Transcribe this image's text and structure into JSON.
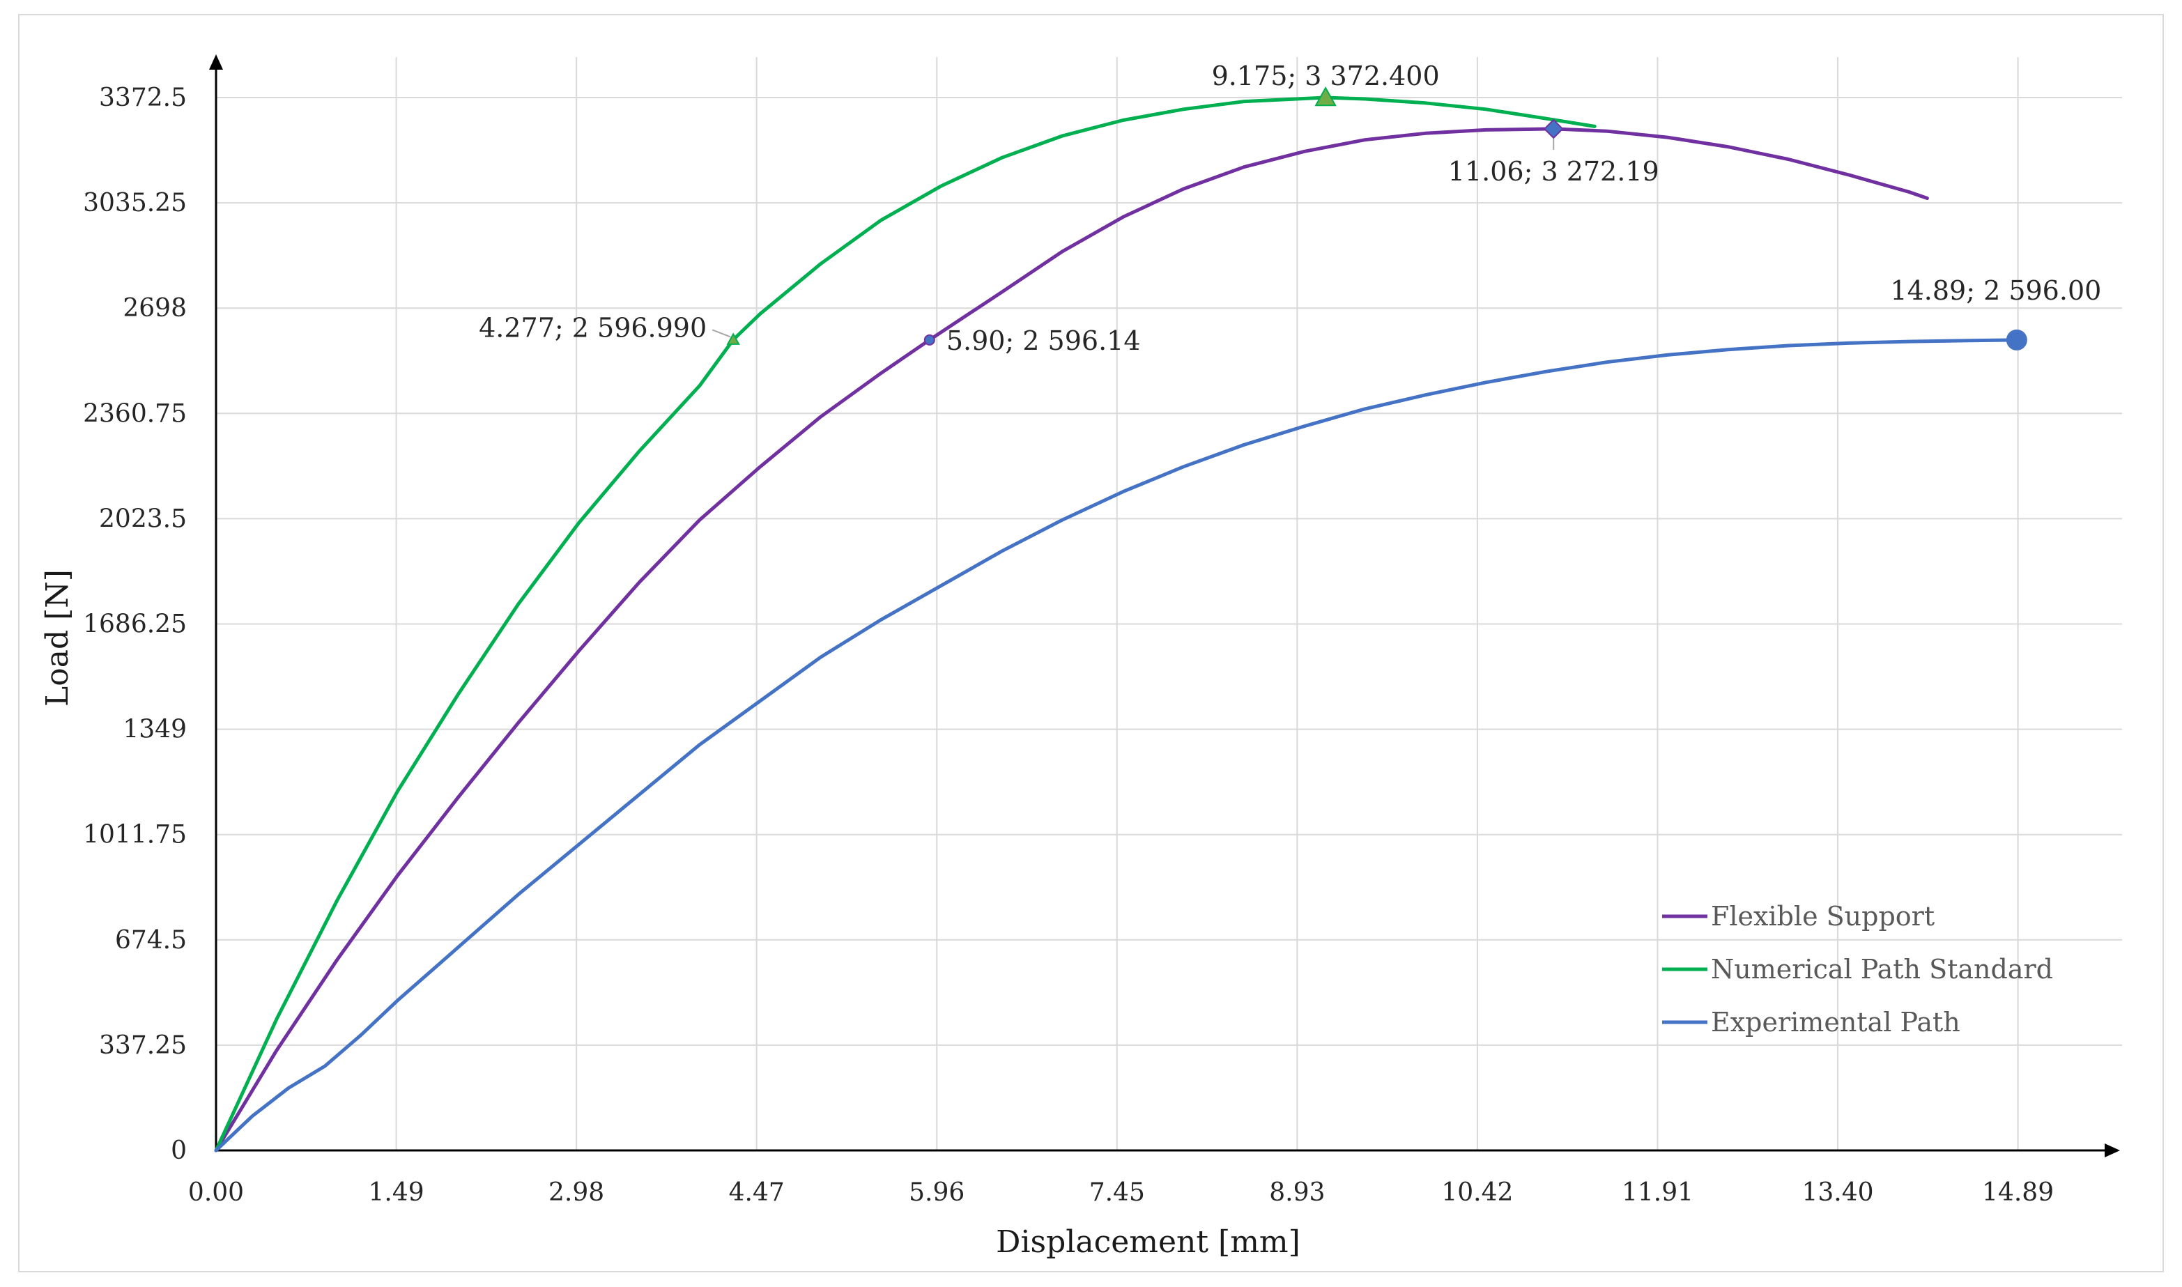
{
  "chart_data": {
    "type": "line",
    "xlabel": "Displacement  [mm]",
    "ylabel": "Load [N]",
    "xlim": [
      0,
      15.3
    ],
    "ylim": [
      0,
      3372.5
    ],
    "x_ticks": [
      "0.00",
      "1.49",
      "2.98",
      "4.47",
      "5.96",
      "7.45",
      "8.93",
      "10.42",
      "11.91",
      "13.40",
      "14.89"
    ],
    "y_ticks": [
      "0",
      "337.25",
      "674.5",
      "1011.75",
      "1349",
      "1686.25",
      "2023.5",
      "2360.75",
      "2698",
      "3035.25",
      "3372.5"
    ],
    "grid": true,
    "legend_position": "bottom-right",
    "series": [
      {
        "name": "Flexible Support",
        "color": "#7030a0",
        "x": [
          0,
          0.5,
          1.0,
          1.5,
          2.0,
          2.5,
          3.0,
          3.5,
          4.0,
          4.5,
          5.0,
          5.5,
          5.9,
          6.5,
          7.0,
          7.5,
          8.0,
          8.5,
          9.0,
          9.5,
          10.0,
          10.5,
          11.06,
          11.5,
          12.0,
          12.5,
          13.0,
          13.5,
          14.0,
          14.15
        ],
        "y": [
          0,
          320,
          610,
          880,
          1130,
          1370,
          1600,
          1820,
          2020,
          2190,
          2350,
          2490,
          2596.14,
          2750,
          2880,
          2990,
          3080,
          3150,
          3200,
          3237,
          3258,
          3269,
          3272.19,
          3265,
          3245,
          3215,
          3175,
          3125,
          3070,
          3050
        ]
      },
      {
        "name": "Numerical Path Standard",
        "color": "#00b050",
        "x": [
          0,
          0.5,
          1.0,
          1.5,
          2.0,
          2.5,
          3.0,
          3.5,
          4.0,
          4.277,
          4.5,
          5.0,
          5.5,
          6.0,
          6.5,
          7.0,
          7.5,
          8.0,
          8.5,
          9.175,
          9.5,
          10.0,
          10.5,
          11.0,
          11.4
        ],
        "y": [
          0,
          420,
          800,
          1150,
          1460,
          1750,
          2010,
          2240,
          2450,
          2596.99,
          2680,
          2840,
          2980,
          3090,
          3180,
          3250,
          3300,
          3335,
          3360,
          3372.4,
          3368,
          3355,
          3335,
          3305,
          3280
        ]
      },
      {
        "name": "Experimental Path",
        "color": "#4472c4",
        "x": [
          0,
          0.3,
          0.6,
          0.9,
          1.2,
          1.5,
          2.0,
          2.5,
          3.0,
          3.5,
          4.0,
          4.5,
          5.0,
          5.5,
          6.0,
          6.5,
          7.0,
          7.5,
          8.0,
          8.5,
          9.0,
          9.5,
          10.0,
          10.5,
          11.0,
          11.5,
          12.0,
          12.5,
          13.0,
          13.5,
          14.0,
          14.5,
          14.89
        ],
        "y": [
          0,
          110,
          200,
          270,
          370,
          480,
          650,
          820,
          980,
          1140,
          1300,
          1440,
          1580,
          1700,
          1810,
          1920,
          2020,
          2110,
          2190,
          2260,
          2320,
          2375,
          2420,
          2460,
          2495,
          2525,
          2548,
          2565,
          2578,
          2586,
          2591,
          2594,
          2596
        ]
      }
    ],
    "annotations": [
      {
        "text": "9.175; 3 372.400",
        "x": 9.175,
        "y": 3372.4,
        "series": "Numerical Path Standard",
        "marker": "triangle"
      },
      {
        "text": "4.277; 2 596.990",
        "x": 4.277,
        "y": 2596.99,
        "series": "Numerical Path Standard",
        "marker": "triangle"
      },
      {
        "text": "5.90; 2 596.14",
        "x": 5.9,
        "y": 2596.14,
        "series": "Flexible Support",
        "marker": "circle"
      },
      {
        "text": "11.06; 3 272.19",
        "x": 11.06,
        "y": 3272.19,
        "series": "Flexible Support",
        "marker": "diamond"
      },
      {
        "text": "14.89; 2 596.00",
        "x": 14.89,
        "y": 2596.0,
        "series": "Experimental Path",
        "marker": "circle"
      }
    ]
  }
}
